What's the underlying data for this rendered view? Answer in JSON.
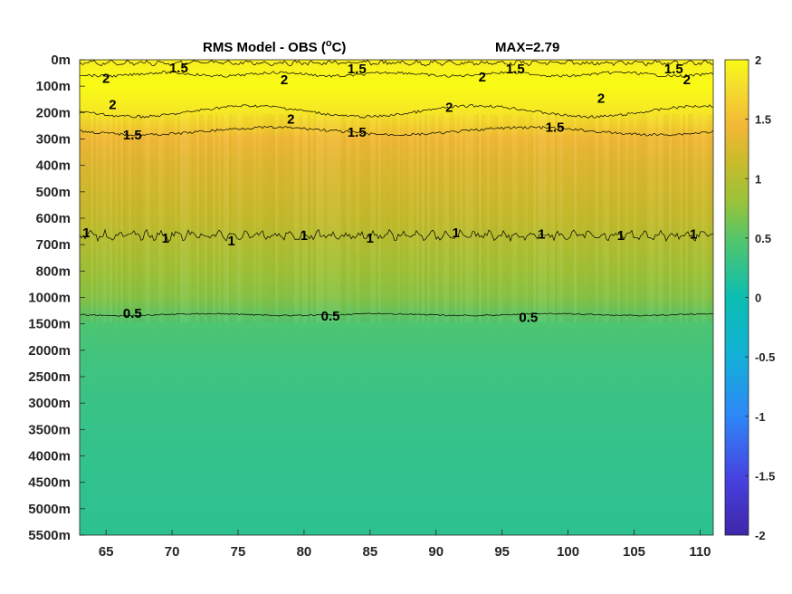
{
  "chart_data": {
    "type": "heatmap",
    "title": "RMS Model - OBS (",
    "title_unit_sup": "o",
    "title_unit_end": "C)",
    "max_label": "MAX=2.79",
    "x_ticks": [
      65,
      70,
      75,
      80,
      85,
      90,
      95,
      100,
      105,
      110
    ],
    "xlim": [
      63,
      111
    ],
    "y_tick_labels": [
      "0m",
      "100m",
      "200m",
      "300m",
      "400m",
      "500m",
      "600m",
      "700m",
      "800m",
      "1000m",
      "1500m",
      "2000m",
      "2500m",
      "3000m",
      "3500m",
      "4000m",
      "4500m",
      "5000m",
      "5500m"
    ],
    "colorbar": {
      "range": [
        -2,
        2
      ],
      "ticks": [
        "2",
        "1.5",
        "1",
        "0.5",
        "0",
        "-0.5",
        "-1",
        "-1.5",
        "-2"
      ],
      "colormap": "parula"
    },
    "profile": [
      {
        "depth": "0m",
        "value": 1.9
      },
      {
        "depth": "100m",
        "value": 2.05
      },
      {
        "depth": "200m",
        "value": 1.85
      },
      {
        "depth": "300m",
        "value": 1.45
      },
      {
        "depth": "400m",
        "value": 1.3
      },
      {
        "depth": "500m",
        "value": 1.2
      },
      {
        "depth": "600m",
        "value": 1.1
      },
      {
        "depth": "700m",
        "value": 0.98
      },
      {
        "depth": "800m",
        "value": 0.85
      },
      {
        "depth": "1000m",
        "value": 0.72
      },
      {
        "depth": "1500m",
        "value": 0.45
      },
      {
        "depth": "2000m",
        "value": 0.38
      },
      {
        "depth": "2500m",
        "value": 0.34
      },
      {
        "depth": "3000m",
        "value": 0.31
      },
      {
        "depth": "3500m",
        "value": 0.29
      },
      {
        "depth": "4000m",
        "value": 0.27
      },
      {
        "depth": "4500m",
        "value": 0.25
      },
      {
        "depth": "5000m",
        "value": 0.24
      },
      {
        "depth": "5500m",
        "value": 0.23
      }
    ],
    "contours": [
      {
        "level": "2",
        "labels": [
          {
            "lon": 65,
            "depth_index": 0.7
          },
          {
            "lon": 78.5,
            "depth_index": 0.75
          },
          {
            "lon": 93.5,
            "depth_index": 0.65
          },
          {
            "lon": 109,
            "depth_index": 0.75
          },
          {
            "lon": 65.5,
            "depth_index": 1.7
          },
          {
            "lon": 79,
            "depth_index": 2.25
          },
          {
            "lon": 91,
            "depth_index": 1.8
          },
          {
            "lon": 102.5,
            "depth_index": 1.45
          }
        ]
      },
      {
        "level": "1.5",
        "labels": [
          {
            "lon": 70.5,
            "depth_index": 0.3
          },
          {
            "lon": 84,
            "depth_index": 0.35
          },
          {
            "lon": 96,
            "depth_index": 0.35
          },
          {
            "lon": 108,
            "depth_index": 0.35
          },
          {
            "lon": 67,
            "depth_index": 2.85
          },
          {
            "lon": 84,
            "depth_index": 2.75
          },
          {
            "lon": 99,
            "depth_index": 2.55
          }
        ]
      },
      {
        "level": "1",
        "labels": [
          {
            "lon": 63.5,
            "depth_index": 6.55
          },
          {
            "lon": 69.5,
            "depth_index": 6.75
          },
          {
            "lon": 74.5,
            "depth_index": 6.85
          },
          {
            "lon": 80,
            "depth_index": 6.65
          },
          {
            "lon": 85,
            "depth_index": 6.75
          },
          {
            "lon": 91.5,
            "depth_index": 6.55
          },
          {
            "lon": 98,
            "depth_index": 6.6
          },
          {
            "lon": 104,
            "depth_index": 6.65
          },
          {
            "lon": 109.5,
            "depth_index": 6.6
          }
        ]
      },
      {
        "level": "0.5",
        "labels": [
          {
            "lon": 67,
            "depth_index": 9.6
          },
          {
            "lon": 82,
            "depth_index": 9.7
          },
          {
            "lon": 97,
            "depth_index": 9.75
          }
        ]
      }
    ]
  }
}
